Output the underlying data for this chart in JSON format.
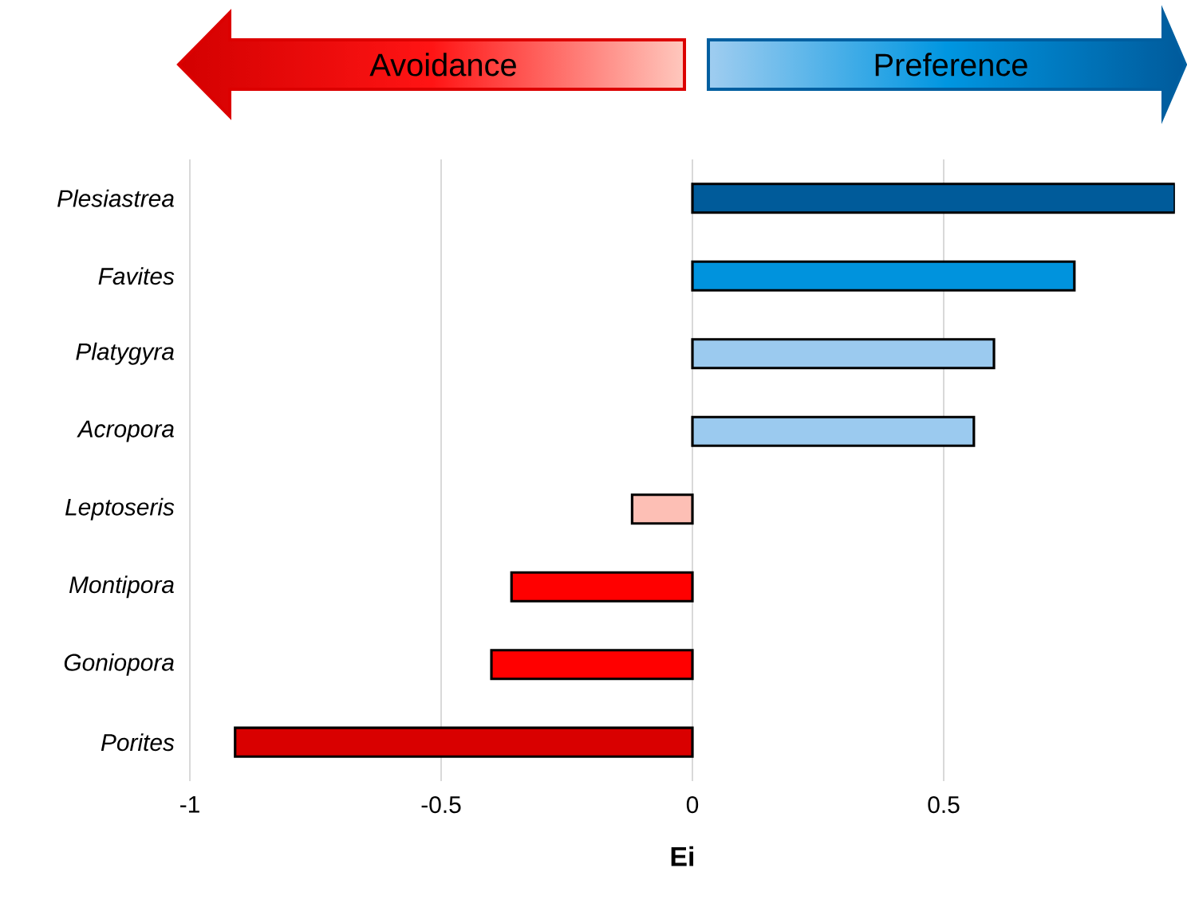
{
  "chart_data": {
    "type": "bar",
    "orientation": "horizontal",
    "xlabel": "Ei",
    "annotations": [
      "Avoidance",
      "Preference"
    ],
    "categories": [
      "Plesiastrea",
      "Favites",
      "Platygyra",
      "Acropora",
      "Leptoseris",
      "Montipora",
      "Goniopora",
      "Porites"
    ],
    "values": [
      0.96,
      0.76,
      0.6,
      0.56,
      -0.12,
      -0.36,
      -0.4,
      -0.91
    ],
    "colors": [
      "#005b9a",
      "#0093dd",
      "#9bcaef",
      "#9bcaef",
      "#fdbfb5",
      "#ff0000",
      "#ff0000",
      "#d90000"
    ],
    "xticks": [
      -1,
      -0.5,
      0,
      0.5
    ],
    "xlim": [
      -1,
      0.96
    ],
    "grid": "x"
  }
}
